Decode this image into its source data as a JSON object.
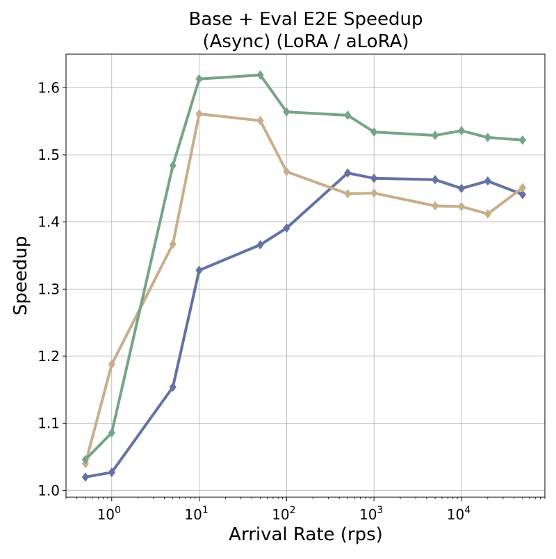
{
  "chart_data": {
    "type": "line",
    "title_lines": [
      "Base + Eval E2E Speedup",
      "(Async) (LoRA / aLoRA)"
    ],
    "xlabel": "Arrival Rate (rps)",
    "ylabel": "Speedup",
    "xscale": "log",
    "xlim": [
      0.3,
      90000
    ],
    "ylim": [
      0.99,
      1.65
    ],
    "grid": true,
    "x_ticks": [
      {
        "base": "10",
        "exp": "0",
        "value": 1
      },
      {
        "base": "10",
        "exp": "1",
        "value": 10
      },
      {
        "base": "10",
        "exp": "2",
        "value": 100
      },
      {
        "base": "10",
        "exp": "3",
        "value": 1000
      },
      {
        "base": "10",
        "exp": "4",
        "value": 10000
      }
    ],
    "y_ticks": [
      "1.0",
      "1.1",
      "1.2",
      "1.3",
      "1.4",
      "1.5",
      "1.6"
    ],
    "x": [
      0.5,
      1,
      5,
      10,
      50,
      100,
      500,
      1000,
      5000,
      10000,
      20000,
      50000
    ],
    "series": [
      {
        "color": "#6272a4",
        "values": [
          1.02,
          1.027,
          1.154,
          1.328,
          1.366,
          1.391,
          1.473,
          1.465,
          1.463,
          1.45,
          1.461,
          1.441
        ]
      },
      {
        "color": "#c8ae8a",
        "values": [
          1.04,
          1.188,
          1.367,
          1.561,
          1.551,
          1.475,
          1.442,
          1.443,
          1.424,
          1.423,
          1.412,
          1.451
        ]
      },
      {
        "color": "#76a586",
        "values": [
          1.046,
          1.086,
          1.484,
          1.613,
          1.619,
          1.564,
          1.559,
          1.534,
          1.529,
          1.536,
          1.526,
          1.522
        ]
      }
    ]
  }
}
